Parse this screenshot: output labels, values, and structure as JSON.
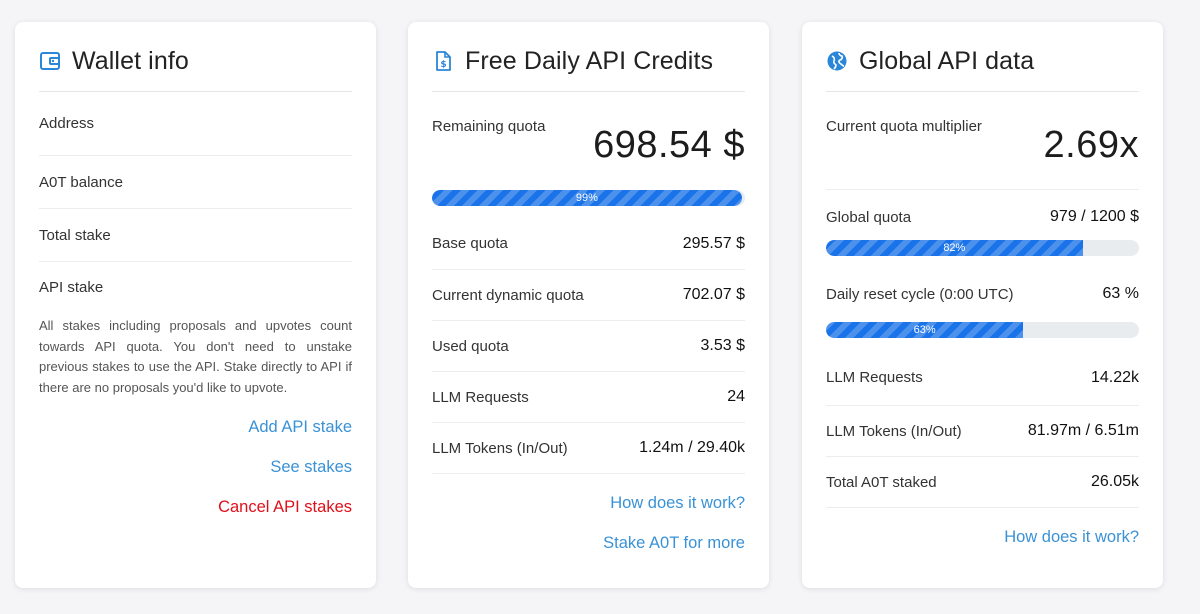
{
  "wallet": {
    "title": "Wallet info",
    "icon": "wallet-icon",
    "rows": [
      {
        "label": "Address"
      },
      {
        "label": "A0T balance"
      },
      {
        "label": "Total stake"
      },
      {
        "label": "API stake"
      }
    ],
    "note": "All stakes including proposals and upvotes count towards API quota. You don't need to unstake previous stakes to use the API. Stake directly to API if there are no proposals you'd like to upvote.",
    "links": {
      "add": "Add API stake",
      "see": "See stakes",
      "cancel": "Cancel API stakes"
    }
  },
  "credits": {
    "title": "Free Daily API Credits",
    "icon": "dollar-document-icon",
    "remaining_label": "Remaining quota",
    "remaining_value": "698.54 $",
    "progress_pct": 99,
    "progress_label": "99%",
    "rows": [
      {
        "label": "Base quota",
        "value": "295.57 $"
      },
      {
        "label": "Current dynamic quota",
        "value": "702.07 $"
      },
      {
        "label": "Used quota",
        "value": "3.53 $"
      },
      {
        "label": "LLM Requests",
        "value": "24"
      },
      {
        "label": "LLM Tokens (In/Out)",
        "value": "1.24m / 29.40k"
      }
    ],
    "links": {
      "how": "How does it work?",
      "stake": "Stake A0T for more"
    }
  },
  "global": {
    "title": "Global API data",
    "icon": "globe-icon",
    "multiplier_label": "Current quota multiplier",
    "multiplier_value": "2.69x",
    "quota_label": "Global quota",
    "quota_value": "979 / 1200 $",
    "quota_pct": 82,
    "quota_pct_label": "82%",
    "reset_label": "Daily reset cycle (0:00 UTC)",
    "reset_value": "63 %",
    "reset_pct": 63,
    "reset_pct_label": "63%",
    "rows": [
      {
        "label": "LLM Requests",
        "value": "14.22k"
      },
      {
        "label": "LLM Tokens (In/Out)",
        "value": "81.97m / 6.51m"
      },
      {
        "label": "Total A0T staked",
        "value": "26.05k"
      }
    ],
    "links": {
      "how": "How does it work?"
    }
  },
  "colors": {
    "accent": "#1a73e8",
    "link": "#3a92d6",
    "danger": "#e0101a"
  }
}
